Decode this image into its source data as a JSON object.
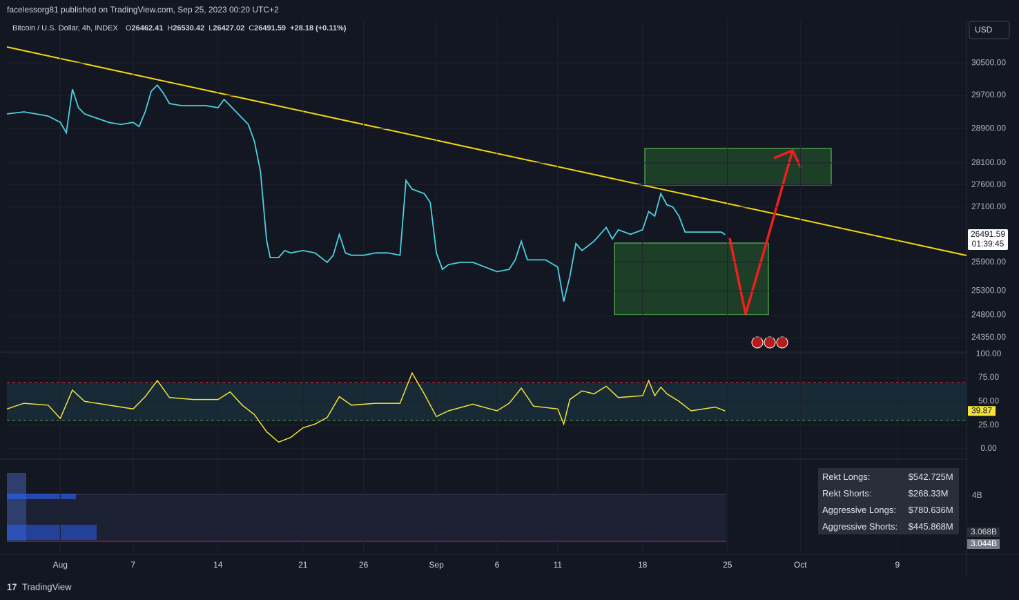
{
  "header": {
    "publisher": "facelessorg81 published on TradingView.com, Sep 25, 2023 00:20 UTC+2",
    "symbol": "Bitcoin / U.S. Dollar, 4h, INDEX",
    "ohlc": [
      {
        "label": "O",
        "value": "26462.41"
      },
      {
        "label": "H",
        "value": "26530.42"
      },
      {
        "label": "L",
        "value": "26427.02"
      },
      {
        "label": "C",
        "value": "26491.59"
      }
    ],
    "change": "+28.18 (+0.11%)"
  },
  "currency": "USD",
  "chart_data": [
    {
      "type": "line",
      "log_scale": true,
      "grid": true,
      "xlim": [
        -4.4,
        74.7
      ],
      "xticks": [
        {
          "value": 0,
          "label": "Aug"
        },
        {
          "value": 6,
          "label": "7"
        },
        {
          "value": 13,
          "label": "14"
        },
        {
          "value": 20,
          "label": "21"
        },
        {
          "value": 25,
          "label": "26"
        },
        {
          "value": 31,
          "label": "Sep"
        },
        {
          "value": 36,
          "label": "6"
        },
        {
          "value": 41,
          "label": "11"
        },
        {
          "value": 48,
          "label": "18"
        },
        {
          "value": 55,
          "label": "25"
        },
        {
          "value": 61,
          "label": "Oct"
        },
        {
          "value": 69,
          "label": "9"
        }
      ],
      "ylim": [
        24060,
        31610
      ],
      "yticks": [
        {
          "value": 30500,
          "label": "30500.00"
        },
        {
          "value": 29700,
          "label": "29700.00"
        },
        {
          "value": 28900,
          "label": "28900.00"
        },
        {
          "value": 28100,
          "label": "28100.00"
        },
        {
          "value": 27600,
          "label": "27600.00"
        },
        {
          "value": 27100,
          "label": "27100.00"
        },
        {
          "value": 25900,
          "label": "25900.00"
        },
        {
          "value": 25300,
          "label": "25300.00"
        },
        {
          "value": 24800,
          "label": "24800.00"
        },
        {
          "value": 24350,
          "label": "24350.00"
        }
      ],
      "x": [
        -4.4,
        -3,
        -2,
        -1,
        0,
        0.5,
        1,
        1.5,
        2,
        3,
        4,
        5,
        6,
        6.5,
        7,
        7.5,
        8,
        8.5,
        9,
        10,
        11,
        12,
        13,
        13.5,
        14,
        15,
        15.5,
        16,
        16.5,
        17,
        17.3,
        18,
        18.5,
        19,
        20,
        21,
        22,
        22.5,
        23,
        23.5,
        24,
        25,
        26,
        27,
        28,
        28.5,
        29,
        30,
        30.5,
        31,
        31.5,
        32,
        33,
        34,
        35,
        36,
        37,
        37.5,
        38,
        38.5,
        39,
        40,
        41,
        41.5,
        42,
        42.5,
        43,
        44,
        45,
        45.5,
        46,
        47,
        47.5,
        48,
        48.5,
        49,
        49.5,
        50,
        50.5,
        51,
        51.5,
        52,
        53,
        54,
        54.5,
        54.8
      ],
      "series": [
        {
          "color": "#4dd0e1",
          "values": [
            29250,
            29300,
            29250,
            29200,
            29050,
            28800,
            29850,
            29400,
            29250,
            29150,
            29050,
            29000,
            29050,
            28950,
            29300,
            29800,
            29950,
            29750,
            29500,
            29450,
            29450,
            29450,
            29400,
            29600,
            29450,
            29150,
            29000,
            28600,
            27900,
            26380,
            26000,
            26000,
            26150,
            26100,
            26150,
            26100,
            25900,
            26050,
            26500,
            26100,
            26050,
            26050,
            26100,
            26100,
            26050,
            27700,
            27500,
            27400,
            27200,
            26100,
            25750,
            25850,
            25900,
            25900,
            25800,
            25700,
            25750,
            25950,
            26350,
            25950,
            25950,
            25950,
            25800,
            25080,
            25600,
            26300,
            26150,
            26350,
            26650,
            26400,
            26600,
            26500,
            26550,
            26600,
            27000,
            26900,
            27400,
            27150,
            27100,
            26900,
            26550,
            26550,
            26550,
            26550,
            26550,
            26492
          ]
        }
      ],
      "last_label": "26491.59",
      "countdown": "01:39:45"
    },
    {
      "type": "line",
      "xlim": [
        -4.4,
        74.7
      ],
      "ylim": [
        -11,
        102
      ],
      "yticks": [
        {
          "value": 100,
          "label": "100.00"
        },
        {
          "value": 75,
          "label": "75.00"
        },
        {
          "value": 50,
          "label": "50.00"
        },
        {
          "value": 25,
          "label": "25.00"
        },
        {
          "value": 0,
          "label": "0.00"
        }
      ],
      "hlines": [
        {
          "value": 70,
          "color": "#f23645"
        },
        {
          "value": 30,
          "color": "#4caf50"
        }
      ],
      "x": [
        -4.4,
        -3,
        -1,
        0,
        1,
        2,
        4,
        6,
        7,
        8,
        9,
        11,
        13,
        14,
        15,
        16,
        17,
        18,
        19,
        20,
        21,
        22,
        23,
        24,
        26,
        28,
        29,
        30,
        31,
        32,
        34,
        36,
        37,
        38,
        39,
        41,
        41.5,
        42,
        43,
        44,
        45,
        46,
        48,
        48.5,
        49,
        49.5,
        50,
        51,
        52,
        53,
        54,
        54.8
      ],
      "series": [
        {
          "color": "#f5e33b",
          "values": [
            42,
            48,
            46,
            32,
            62,
            50,
            46,
            42,
            55,
            72,
            54,
            52,
            52,
            60,
            46,
            36,
            18,
            7,
            12,
            22,
            26,
            33,
            55,
            46,
            48,
            48,
            80,
            58,
            34,
            40,
            47,
            40,
            48,
            64,
            45,
            42,
            26,
            52,
            61,
            58,
            66,
            54,
            56,
            72,
            56,
            65,
            58,
            50,
            40,
            42,
            44,
            39.87
          ]
        }
      ],
      "last_label": "39.87"
    }
  ],
  "liquidations": {
    "axis_labels": [
      "4B",
      "3.068B",
      "3.044B"
    ],
    "stats": [
      [
        "Rekt Longs:",
        "$542.725M"
      ],
      [
        "Rekt Shorts:",
        "$268.33M"
      ],
      [
        "Aggressive Longs:",
        "$780.636M"
      ],
      [
        "Aggressive Shorts:",
        "$445.868M"
      ]
    ]
  },
  "footer": "TradingView"
}
